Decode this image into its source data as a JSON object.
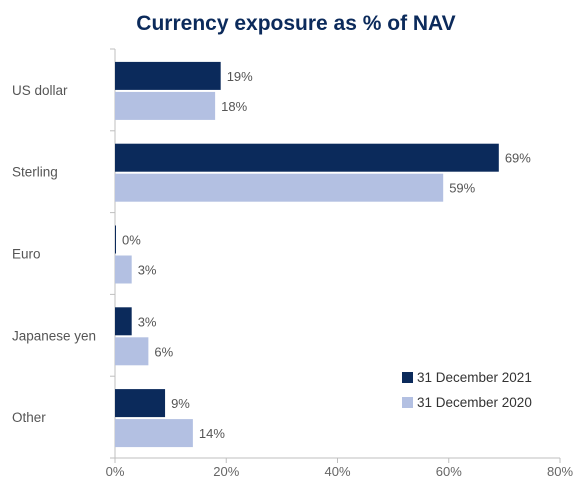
{
  "chart_data": {
    "type": "bar",
    "orientation": "horizontal",
    "title": "Currency exposure as % of NAV",
    "categories": [
      "US dollar",
      "Sterling",
      "Euro",
      "Japanese yen",
      "Other"
    ],
    "series": [
      {
        "name": "31 December 2021",
        "color": "#0b2a5b",
        "values": [
          19,
          69,
          0,
          3,
          9
        ],
        "labels": [
          "19%",
          "69%",
          "0%",
          "3%",
          "9%"
        ]
      },
      {
        "name": "31 December 2020",
        "color": "#b3c0e2",
        "values": [
          18,
          59,
          3,
          6,
          14
        ],
        "labels": [
          "18%",
          "59%",
          "3%",
          "6%",
          "14%"
        ]
      }
    ],
    "xlim": [
      0,
      80
    ],
    "xticks": [
      0,
      20,
      40,
      60,
      80
    ],
    "xtick_labels": [
      "0%",
      "20%",
      "40%",
      "60%",
      "80%"
    ],
    "grid": false,
    "legend_position": "bottom-right"
  }
}
